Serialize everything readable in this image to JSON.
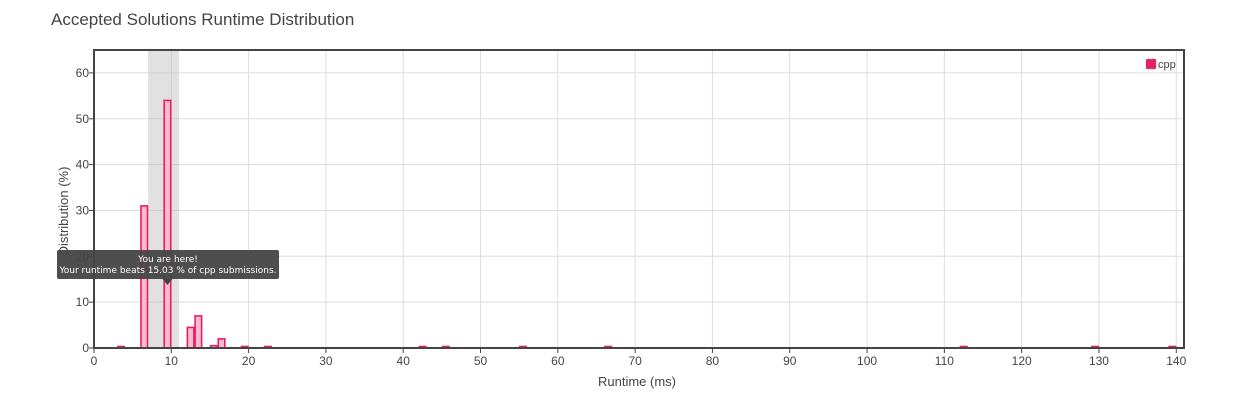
{
  "chart_data": {
    "type": "bar",
    "title": "Accepted Solutions Runtime Distribution",
    "xlabel": "Runtime (ms)",
    "ylabel": "Distribution (%)",
    "xlim": [
      0,
      141
    ],
    "ylim": [
      0,
      65
    ],
    "xticks": [
      0,
      10,
      20,
      30,
      40,
      50,
      60,
      70,
      80,
      90,
      100,
      110,
      120,
      130,
      140
    ],
    "yticks": [
      0,
      10,
      20,
      30,
      40,
      50,
      60
    ],
    "grid": true,
    "legend_position": "top-right",
    "series": [
      {
        "name": "cpp",
        "color": "#e91e63",
        "fill": "#f8bbd0",
        "points": [
          {
            "x": 3.5,
            "y": 0.1
          },
          {
            "x": 6.5,
            "y": 31
          },
          {
            "x": 9.5,
            "y": 54
          },
          {
            "x": 12.5,
            "y": 4.5
          },
          {
            "x": 13.5,
            "y": 7
          },
          {
            "x": 15.5,
            "y": 0.5
          },
          {
            "x": 16.5,
            "y": 2
          },
          {
            "x": 19.5,
            "y": 0.3
          },
          {
            "x": 22.5,
            "y": 0.2
          },
          {
            "x": 42.5,
            "y": 0.3
          },
          {
            "x": 45.5,
            "y": 0.1
          },
          {
            "x": 55.5,
            "y": 0.1
          },
          {
            "x": 66.5,
            "y": 0.1
          },
          {
            "x": 112.5,
            "y": 0.1
          },
          {
            "x": 129.5,
            "y": 0.1
          },
          {
            "x": 139.5,
            "y": 0.1
          }
        ]
      }
    ],
    "highlight_range": [
      7,
      11
    ],
    "tooltip": {
      "line1": "You are here!",
      "line2": "Your runtime beats 15.03 % of cpp submissions.",
      "anchor_x": 9.5
    }
  }
}
